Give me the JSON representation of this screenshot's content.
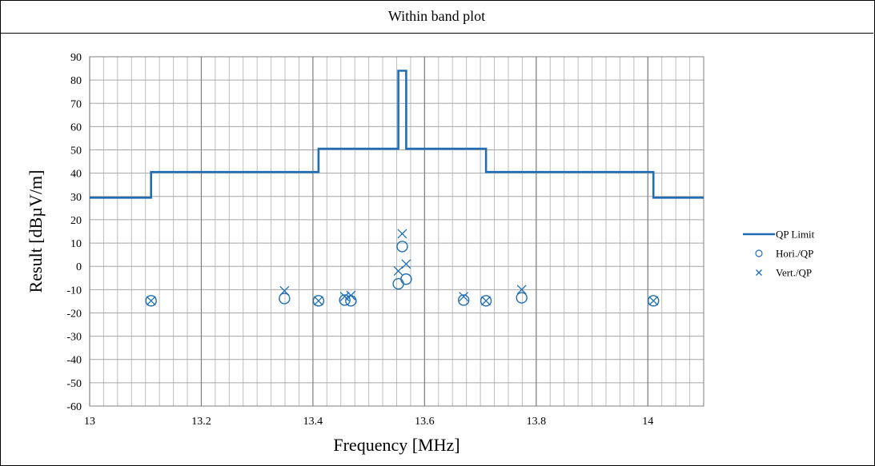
{
  "chart_data": {
    "type": "scatter",
    "title": "Within band plot",
    "xlabel": "Frequency [MHz]",
    "ylabel": "Result [dBµV/m]",
    "xlim": [
      13.0,
      14.1
    ],
    "ylim": [
      -60,
      90
    ],
    "x_ticks": [
      13,
      13.2,
      13.4,
      13.6,
      13.8,
      14
    ],
    "x_tick_labels": [
      "13",
      "13.2",
      "13.4",
      "13.6",
      "13.8",
      "14"
    ],
    "y_ticks": [
      -60,
      -50,
      -40,
      -30,
      -20,
      -10,
      0,
      10,
      20,
      30,
      40,
      50,
      60,
      70,
      80,
      90
    ],
    "y_tick_labels": [
      "-60",
      "-50",
      "-40",
      "-30",
      "-20",
      "-10",
      "0",
      "10",
      "20",
      "30",
      "40",
      "50",
      "60",
      "70",
      "80",
      "90"
    ],
    "minor_x_step": 0.025,
    "grid": true,
    "legend_position": "right",
    "series": [
      {
        "name": "QP Limit",
        "kind": "step-line",
        "color": "#1f6eb4",
        "points": [
          [
            13.0,
            29.5
          ],
          [
            13.11,
            29.5
          ],
          [
            13.11,
            40.5
          ],
          [
            13.41,
            40.5
          ],
          [
            13.41,
            50.5
          ],
          [
            13.553,
            50.5
          ],
          [
            13.553,
            84
          ],
          [
            13.567,
            84
          ],
          [
            13.567,
            50.5
          ],
          [
            13.71,
            50.5
          ],
          [
            13.71,
            40.5
          ],
          [
            14.01,
            40.5
          ],
          [
            14.01,
            29.5
          ],
          [
            14.1,
            29.5
          ]
        ]
      },
      {
        "name": "Hori./QP",
        "kind": "marker-circle",
        "color": "#1f6eb4",
        "points": [
          [
            13.11,
            -14.8
          ],
          [
            13.349,
            -13.8
          ],
          [
            13.41,
            -14.8
          ],
          [
            13.457,
            -14.5
          ],
          [
            13.468,
            -14.8
          ],
          [
            13.553,
            -7.5
          ],
          [
            13.56,
            8.5
          ],
          [
            13.567,
            -5.5
          ],
          [
            13.67,
            -14.5
          ],
          [
            13.71,
            -14.8
          ],
          [
            13.774,
            -13.5
          ],
          [
            14.01,
            -14.8
          ]
        ]
      },
      {
        "name": "Vert./QP",
        "kind": "marker-x",
        "color": "#1f6eb4",
        "points": [
          [
            13.11,
            -14.8
          ],
          [
            13.349,
            -10.5
          ],
          [
            13.41,
            -14.8
          ],
          [
            13.457,
            -13.0
          ],
          [
            13.468,
            -12.5
          ],
          [
            13.553,
            -2.0
          ],
          [
            13.56,
            14.0
          ],
          [
            13.567,
            1.0
          ],
          [
            13.67,
            -13.0
          ],
          [
            13.71,
            -14.8
          ],
          [
            13.774,
            -10.0
          ],
          [
            14.01,
            -14.8
          ]
        ]
      }
    ]
  }
}
